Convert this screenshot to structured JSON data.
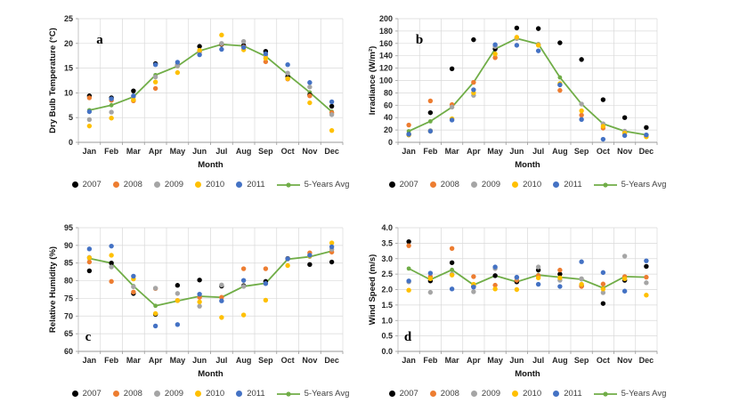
{
  "page": {
    "background": "#ffffff"
  },
  "palette": {
    "y2007": "#000000",
    "y2008": "#ED7D31",
    "y2009": "#A5A5A5",
    "y2010": "#FFC000",
    "y2011": "#4472C4",
    "avg": "#70AD47",
    "gridline": "#D9D9D9",
    "axis": "#9A9A9A"
  },
  "chart_data": [
    {
      "id": "a",
      "letter": "a",
      "letter_pos": "top-left",
      "type": "scatter",
      "ylabel": "Dry Bulb Temperature (°C)",
      "xlabel": "Month",
      "ylim": [
        0,
        25
      ],
      "ytick_step": 5,
      "ydecimals": 0,
      "grid": true,
      "legend_position": "bottom",
      "categories": [
        "Jan",
        "Feb",
        "Mar",
        "Apr",
        "May",
        "Jun",
        "Jul",
        "Aug",
        "Sep",
        "Oct",
        "Nov",
        "Dec"
      ],
      "series": [
        {
          "name": "2007",
          "kind": "scatter",
          "color": "#000000",
          "values": [
            9.4,
            9.0,
            10.4,
            15.9,
            15.6,
            19.4,
            19.8,
            19.6,
            18.4,
            13.3,
            9.6,
            7.3
          ]
        },
        {
          "name": "2008",
          "kind": "scatter",
          "color": "#ED7D31",
          "values": [
            9.0,
            8.5,
            8.4,
            10.9,
            15.5,
            18.3,
            19.9,
            19.3,
            16.3,
            12.8,
            9.4,
            6.0
          ]
        },
        {
          "name": "2009",
          "kind": "scatter",
          "color": "#A5A5A5",
          "values": [
            4.6,
            6.1,
            9.2,
            13.2,
            15.5,
            18.4,
            20.0,
            20.4,
            17.6,
            14.0,
            11.2,
            5.6
          ]
        },
        {
          "name": "2010",
          "kind": "scatter",
          "color": "#FFC000",
          "values": [
            3.3,
            4.9,
            8.6,
            12.2,
            14.1,
            18.6,
            21.7,
            18.7,
            17.0,
            12.9,
            8.0,
            2.4
          ]
        },
        {
          "name": "2011",
          "kind": "scatter",
          "color": "#4472C4",
          "values": [
            6.2,
            8.8,
            9.4,
            15.7,
            16.2,
            17.7,
            18.8,
            19.2,
            17.9,
            15.7,
            12.1,
            8.2
          ]
        },
        {
          "name": "5-Years Avg",
          "kind": "line",
          "color": "#70AD47",
          "values": [
            6.5,
            7.5,
            9.2,
            13.6,
            15.4,
            18.5,
            19.8,
            19.5,
            17.4,
            13.7,
            10.1,
            6.2
          ]
        }
      ]
    },
    {
      "id": "b",
      "letter": "b",
      "letter_pos": "top-left",
      "type": "scatter",
      "ylabel": "Irradiance (W/m²)",
      "xlabel": "Month",
      "ylim": [
        0,
        200
      ],
      "ytick_step": 20,
      "ydecimals": 0,
      "grid": true,
      "legend_position": "bottom",
      "categories": [
        "Jan",
        "Feb",
        "Mar",
        "Apr",
        "May",
        "Jun",
        "Jul",
        "Aug",
        "Sep",
        "Oct",
        "Nov",
        "Dec"
      ],
      "series": [
        {
          "name": "2007",
          "kind": "scatter",
          "color": "#000000",
          "values": [
            13,
            48,
            119,
            166,
            151,
            185,
            184,
            161,
            134,
            69,
            40,
            24
          ]
        },
        {
          "name": "2008",
          "kind": "scatter",
          "color": "#ED7D31",
          "values": [
            28,
            67,
            61,
            97,
            137,
            168,
            158,
            84,
            44,
            23,
            15,
            10
          ]
        },
        {
          "name": "2009",
          "kind": "scatter",
          "color": "#A5A5A5",
          "values": [
            12,
            19,
            57,
            76,
            155,
            168,
            158,
            93,
            62,
            30,
            18,
            12
          ]
        },
        {
          "name": "2010",
          "kind": "scatter",
          "color": "#FFC000",
          "values": [
            12,
            18,
            38,
            80,
            143,
            170,
            157,
            95,
            51,
            26,
            15,
            9
          ]
        },
        {
          "name": "2011",
          "kind": "scatter",
          "color": "#4472C4",
          "values": [
            13,
            18,
            36,
            85,
            158,
            157,
            148,
            93,
            37,
            5,
            11,
            12
          ]
        },
        {
          "name": "5-Years Avg",
          "kind": "line",
          "color": "#70AD47",
          "values": [
            18,
            34,
            57,
            97,
            151,
            168,
            159,
            105,
            62,
            30,
            18,
            12
          ]
        }
      ]
    },
    {
      "id": "c",
      "letter": "c",
      "letter_pos": "bottom-left",
      "type": "scatter",
      "ylabel": "Relative Humidity (%)",
      "xlabel": "Month",
      "ylim": [
        60,
        95
      ],
      "ytick_step": 5,
      "ydecimals": 0,
      "grid": true,
      "legend_position": "bottom",
      "categories": [
        "Jan",
        "Feb",
        "Mar",
        "Apr",
        "May",
        "Jun",
        "Jul",
        "Aug",
        "Sep",
        "Oct",
        "Nov",
        "Dec"
      ],
      "series": [
        {
          "name": "2007",
          "kind": "scatter",
          "color": "#000000",
          "values": [
            82.8,
            85.0,
            76.4,
            70.5,
            78.7,
            80.2,
            78.5,
            78.6,
            79.8,
            86.3,
            84.6,
            85.3
          ]
        },
        {
          "name": "2008",
          "kind": "scatter",
          "color": "#ED7D31",
          "values": [
            85.3,
            79.8,
            76.8,
            77.8,
            74.4,
            75.3,
            75.3,
            83.4,
            83.4,
            86.2,
            87.9,
            88.1
          ]
        },
        {
          "name": "2009",
          "kind": "scatter",
          "color": "#A5A5A5",
          "values": [
            86.6,
            83.9,
            78.3,
            77.9,
            76.4,
            72.8,
            78.8,
            78.4,
            79.2,
            86.2,
            87.0,
            88.9
          ]
        },
        {
          "name": "2010",
          "kind": "scatter",
          "color": "#FFC000",
          "values": [
            86.5,
            87.2,
            80.5,
            70.7,
            74.4,
            74.0,
            69.6,
            70.3,
            74.5,
            84.3,
            87.0,
            90.7
          ]
        },
        {
          "name": "2011",
          "kind": "scatter",
          "color": "#4472C4",
          "values": [
            89.0,
            89.8,
            81.3,
            67.2,
            67.6,
            76.2,
            74.3,
            80.1,
            79.2,
            86.2,
            87.2,
            89.6
          ]
        },
        {
          "name": "5-Years Avg",
          "kind": "line",
          "color": "#70AD47",
          "values": [
            86.3,
            85.0,
            78.5,
            72.9,
            74.3,
            75.6,
            75.3,
            78.4,
            79.3,
            86.1,
            86.8,
            88.4
          ]
        }
      ]
    },
    {
      "id": "d",
      "letter": "d",
      "letter_pos": "bottom-left",
      "type": "scatter",
      "ylabel": "Wind Speed (m/s)",
      "xlabel": "Month",
      "ylim": [
        0,
        4
      ],
      "ytick_step": 0.5,
      "ydecimals": 1,
      "grid": true,
      "legend_position": "bottom",
      "categories": [
        "Jan",
        "Feb",
        "Mar",
        "Apr",
        "May",
        "Jun",
        "Jul",
        "Aug",
        "Sep",
        "Oct",
        "Nov",
        "Dec"
      ],
      "series": [
        {
          "name": "2007",
          "kind": "scatter",
          "color": "#000000",
          "values": [
            3.55,
            2.28,
            2.87,
            2.1,
            2.45,
            2.25,
            2.63,
            2.5,
            2.12,
            1.55,
            2.3,
            2.75
          ]
        },
        {
          "name": "2008",
          "kind": "scatter",
          "color": "#ED7D31",
          "values": [
            3.42,
            2.42,
            3.33,
            2.42,
            2.14,
            2.3,
            2.45,
            2.63,
            2.1,
            2.18,
            2.42,
            2.4
          ]
        },
        {
          "name": "2009",
          "kind": "scatter",
          "color": "#A5A5A5",
          "values": [
            2.25,
            1.91,
            2.5,
            1.93,
            2.68,
            2.38,
            2.73,
            2.3,
            2.35,
            1.9,
            3.08,
            2.22
          ]
        },
        {
          "name": "2010",
          "kind": "scatter",
          "color": "#FFC000",
          "values": [
            1.98,
            2.35,
            2.47,
            2.17,
            2.02,
            2.0,
            2.38,
            2.38,
            2.17,
            2.02,
            2.35,
            1.82
          ]
        },
        {
          "name": "2011",
          "kind": "scatter",
          "color": "#4472C4",
          "values": [
            2.28,
            2.53,
            2.02,
            2.08,
            2.73,
            2.4,
            2.17,
            2.1,
            2.9,
            2.55,
            1.95,
            2.93
          ]
        },
        {
          "name": "5-Years Avg",
          "kind": "line",
          "color": "#70AD47",
          "values": [
            2.68,
            2.32,
            2.64,
            2.15,
            2.45,
            2.25,
            2.47,
            2.4,
            2.33,
            2.05,
            2.42,
            2.4
          ]
        }
      ]
    }
  ]
}
